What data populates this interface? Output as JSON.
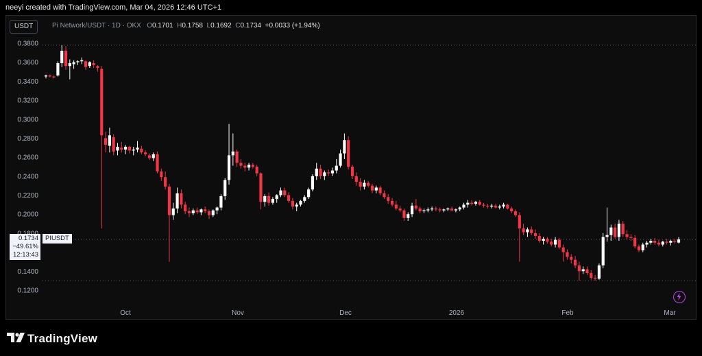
{
  "header": {
    "credit": "neeyi created with TradingView.com, Mar 04, 2026 12:46 UTC+1"
  },
  "toolbar": {
    "currency": "USDT"
  },
  "legend": {
    "symbol": "Pi Network/USDT · 1D · OKX",
    "open_label": "O",
    "open": "0.1701",
    "high_label": "H",
    "high": "0.1758",
    "low_label": "L",
    "low": "0.1692",
    "close_label": "C",
    "close": "0.1734",
    "change": "+0.0033 (+1.94%)"
  },
  "price_label": {
    "value": "0.1734",
    "change": "−49.61%",
    "countdown": "12:13:43",
    "symbol": "PIUSDT"
  },
  "footer": {
    "brand": "TradingView"
  },
  "colors": {
    "up": "#ffffff",
    "down": "#f23645",
    "background": "#0d0d0e",
    "grid_dots": "#5d606b",
    "accent": "#b845ea"
  },
  "icons": {
    "bolt": "lightning-bolt-icon",
    "logo": "tradingview-logo-icon"
  },
  "chart_data": {
    "type": "candlestick",
    "title": "Pi Network/USDT · 1D · OKX",
    "ylim": [
      0.12,
      0.38
    ],
    "y_ticks": [
      "0.3800",
      "0.3600",
      "0.3400",
      "0.3200",
      "0.3000",
      "0.2800",
      "0.2600",
      "0.2400",
      "0.2200",
      "0.2000",
      "0.1800",
      "0.1600",
      "0.1400",
      "0.1200"
    ],
    "x_ticks": [
      "Oct",
      "Nov",
      "Dec",
      "2026",
      "Feb",
      "Mar"
    ],
    "grid": false,
    "dotted_lines": [
      0.378,
      0.1734,
      0.13
    ],
    "candles": [
      [
        0.345,
        0.347,
        0.343,
        0.346
      ],
      [
        0.346,
        0.347,
        0.344,
        0.345
      ],
      [
        0.345,
        0.346,
        0.343,
        0.344
      ],
      [
        0.346,
        0.361,
        0.345,
        0.359
      ],
      [
        0.359,
        0.378,
        0.355,
        0.372
      ],
      [
        0.372,
        0.377,
        0.352,
        0.356
      ],
      [
        0.356,
        0.363,
        0.342,
        0.359
      ],
      [
        0.358,
        0.362,
        0.353,
        0.36
      ],
      [
        0.36,
        0.362,
        0.357,
        0.361
      ],
      [
        0.361,
        0.365,
        0.358,
        0.362
      ],
      [
        0.361,
        0.362,
        0.352,
        0.355
      ],
      [
        0.356,
        0.361,
        0.354,
        0.36
      ],
      [
        0.359,
        0.362,
        0.354,
        0.357
      ],
      [
        0.356,
        0.357,
        0.35,
        0.354
      ],
      [
        0.353,
        0.356,
        0.185,
        0.283
      ],
      [
        0.28,
        0.287,
        0.265,
        0.273
      ],
      [
        0.272,
        0.291,
        0.265,
        0.283
      ],
      [
        0.281,
        0.284,
        0.262,
        0.266
      ],
      [
        0.267,
        0.275,
        0.262,
        0.271
      ],
      [
        0.27,
        0.276,
        0.265,
        0.268
      ],
      [
        0.268,
        0.273,
        0.263,
        0.271
      ],
      [
        0.271,
        0.272,
        0.264,
        0.267
      ],
      [
        0.267,
        0.271,
        0.262,
        0.268
      ],
      [
        0.268,
        0.277,
        0.265,
        0.27
      ],
      [
        0.269,
        0.272,
        0.263,
        0.265
      ],
      [
        0.265,
        0.267,
        0.261,
        0.263
      ],
      [
        0.262,
        0.264,
        0.257,
        0.259
      ],
      [
        0.259,
        0.265,
        0.256,
        0.263
      ],
      [
        0.263,
        0.266,
        0.243,
        0.245
      ],
      [
        0.245,
        0.248,
        0.235,
        0.239
      ],
      [
        0.239,
        0.245,
        0.226,
        0.229
      ],
      [
        0.229,
        0.232,
        0.15,
        0.199
      ],
      [
        0.199,
        0.212,
        0.194,
        0.206
      ],
      [
        0.206,
        0.228,
        0.201,
        0.222
      ],
      [
        0.222,
        0.226,
        0.206,
        0.21
      ],
      [
        0.21,
        0.213,
        0.2,
        0.203
      ],
      [
        0.203,
        0.207,
        0.197,
        0.201
      ],
      [
        0.201,
        0.206,
        0.199,
        0.204
      ],
      [
        0.204,
        0.207,
        0.2,
        0.202
      ],
      [
        0.202,
        0.206,
        0.199,
        0.205
      ],
      [
        0.205,
        0.208,
        0.201,
        0.203
      ],
      [
        0.203,
        0.205,
        0.195,
        0.199
      ],
      [
        0.199,
        0.205,
        0.197,
        0.204
      ],
      [
        0.204,
        0.208,
        0.2,
        0.207
      ],
      [
        0.207,
        0.221,
        0.204,
        0.219
      ],
      [
        0.219,
        0.238,
        0.215,
        0.236
      ],
      [
        0.236,
        0.295,
        0.231,
        0.262
      ],
      [
        0.262,
        0.285,
        0.251,
        0.266
      ],
      [
        0.266,
        0.268,
        0.25,
        0.254
      ],
      [
        0.254,
        0.258,
        0.248,
        0.251
      ],
      [
        0.251,
        0.254,
        0.245,
        0.249
      ],
      [
        0.249,
        0.254,
        0.246,
        0.252
      ],
      [
        0.252,
        0.254,
        0.248,
        0.25
      ],
      [
        0.25,
        0.252,
        0.24,
        0.243
      ],
      [
        0.243,
        0.244,
        0.205,
        0.213
      ],
      [
        0.213,
        0.221,
        0.208,
        0.219
      ],
      [
        0.219,
        0.223,
        0.209,
        0.212
      ],
      [
        0.212,
        0.218,
        0.21,
        0.216
      ],
      [
        0.216,
        0.221,
        0.212,
        0.22
      ],
      [
        0.22,
        0.228,
        0.218,
        0.225
      ],
      [
        0.225,
        0.228,
        0.218,
        0.22
      ],
      [
        0.22,
        0.223,
        0.212,
        0.214
      ],
      [
        0.214,
        0.217,
        0.205,
        0.208
      ],
      [
        0.208,
        0.212,
        0.203,
        0.21
      ],
      [
        0.21,
        0.215,
        0.208,
        0.214
      ],
      [
        0.214,
        0.22,
        0.212,
        0.218
      ],
      [
        0.218,
        0.228,
        0.216,
        0.226
      ],
      [
        0.226,
        0.242,
        0.224,
        0.24
      ],
      [
        0.24,
        0.254,
        0.236,
        0.248
      ],
      [
        0.248,
        0.252,
        0.237,
        0.24
      ],
      [
        0.24,
        0.246,
        0.236,
        0.244
      ],
      [
        0.244,
        0.247,
        0.24,
        0.243
      ],
      [
        0.243,
        0.249,
        0.24,
        0.246
      ],
      [
        0.246,
        0.258,
        0.243,
        0.251
      ],
      [
        0.251,
        0.268,
        0.249,
        0.264
      ],
      [
        0.264,
        0.285,
        0.258,
        0.278
      ],
      [
        0.278,
        0.282,
        0.247,
        0.25
      ],
      [
        0.25,
        0.252,
        0.237,
        0.24
      ],
      [
        0.24,
        0.244,
        0.23,
        0.234
      ],
      [
        0.234,
        0.238,
        0.225,
        0.229
      ],
      [
        0.229,
        0.236,
        0.226,
        0.233
      ],
      [
        0.233,
        0.235,
        0.228,
        0.23
      ],
      [
        0.23,
        0.232,
        0.222,
        0.225
      ],
      [
        0.225,
        0.23,
        0.222,
        0.228
      ],
      [
        0.228,
        0.23,
        0.22,
        0.222
      ],
      [
        0.222,
        0.225,
        0.216,
        0.218
      ],
      [
        0.218,
        0.221,
        0.211,
        0.214
      ],
      [
        0.214,
        0.217,
        0.208,
        0.21
      ],
      [
        0.21,
        0.214,
        0.204,
        0.206
      ],
      [
        0.206,
        0.209,
        0.202,
        0.204
      ],
      [
        0.204,
        0.206,
        0.193,
        0.196
      ],
      [
        0.196,
        0.202,
        0.193,
        0.2
      ],
      [
        0.2,
        0.212,
        0.197,
        0.209
      ],
      [
        0.209,
        0.216,
        0.204,
        0.206
      ],
      [
        0.206,
        0.208,
        0.201,
        0.203
      ],
      [
        0.203,
        0.206,
        0.201,
        0.204
      ],
      [
        0.204,
        0.207,
        0.202,
        0.205
      ],
      [
        0.205,
        0.208,
        0.203,
        0.206
      ],
      [
        0.206,
        0.208,
        0.203,
        0.205
      ],
      [
        0.205,
        0.207,
        0.202,
        0.204
      ],
      [
        0.204,
        0.206,
        0.202,
        0.205
      ],
      [
        0.205,
        0.207,
        0.203,
        0.206
      ],
      [
        0.206,
        0.208,
        0.203,
        0.204
      ],
      [
        0.204,
        0.206,
        0.202,
        0.205
      ],
      [
        0.205,
        0.208,
        0.203,
        0.207
      ],
      [
        0.207,
        0.212,
        0.205,
        0.21
      ],
      [
        0.21,
        0.215,
        0.207,
        0.212
      ],
      [
        0.212,
        0.215,
        0.209,
        0.211
      ],
      [
        0.211,
        0.214,
        0.209,
        0.213
      ],
      [
        0.213,
        0.215,
        0.209,
        0.21
      ],
      [
        0.21,
        0.212,
        0.207,
        0.209
      ],
      [
        0.209,
        0.211,
        0.206,
        0.208
      ],
      [
        0.208,
        0.211,
        0.206,
        0.209
      ],
      [
        0.209,
        0.211,
        0.206,
        0.207
      ],
      [
        0.207,
        0.21,
        0.205,
        0.208
      ],
      [
        0.208,
        0.212,
        0.206,
        0.21
      ],
      [
        0.21,
        0.211,
        0.205,
        0.206
      ],
      [
        0.206,
        0.208,
        0.201,
        0.203
      ],
      [
        0.203,
        0.205,
        0.197,
        0.199
      ],
      [
        0.199,
        0.202,
        0.15,
        0.185
      ],
      [
        0.185,
        0.19,
        0.178,
        0.181
      ],
      [
        0.181,
        0.186,
        0.176,
        0.184
      ],
      [
        0.184,
        0.187,
        0.178,
        0.18
      ],
      [
        0.18,
        0.184,
        0.174,
        0.177
      ],
      [
        0.177,
        0.18,
        0.17,
        0.172
      ],
      [
        0.172,
        0.176,
        0.168,
        0.174
      ],
      [
        0.174,
        0.176,
        0.169,
        0.171
      ],
      [
        0.171,
        0.174,
        0.166,
        0.168
      ],
      [
        0.168,
        0.176,
        0.165,
        0.173
      ],
      [
        0.173,
        0.175,
        0.163,
        0.165
      ],
      [
        0.165,
        0.168,
        0.15,
        0.16
      ],
      [
        0.16,
        0.163,
        0.152,
        0.155
      ],
      [
        0.155,
        0.158,
        0.148,
        0.152
      ],
      [
        0.152,
        0.156,
        0.143,
        0.146
      ],
      [
        0.146,
        0.15,
        0.13,
        0.14
      ],
      [
        0.14,
        0.145,
        0.137,
        0.142
      ],
      [
        0.142,
        0.145,
        0.136,
        0.138
      ],
      [
        0.138,
        0.141,
        0.131,
        0.133
      ],
      [
        0.133,
        0.136,
        0.13,
        0.132
      ],
      [
        0.132,
        0.148,
        0.131,
        0.146
      ],
      [
        0.146,
        0.18,
        0.143,
        0.176
      ],
      [
        0.176,
        0.207,
        0.171,
        0.178
      ],
      [
        0.178,
        0.189,
        0.172,
        0.186
      ],
      [
        0.186,
        0.19,
        0.174,
        0.176
      ],
      [
        0.176,
        0.194,
        0.172,
        0.19
      ],
      [
        0.19,
        0.193,
        0.176,
        0.179
      ],
      [
        0.179,
        0.183,
        0.173,
        0.176
      ],
      [
        0.176,
        0.179,
        0.172,
        0.175
      ],
      [
        0.175,
        0.178,
        0.164,
        0.166
      ],
      [
        0.166,
        0.168,
        0.16,
        0.162
      ],
      [
        0.162,
        0.17,
        0.16,
        0.168
      ],
      [
        0.168,
        0.172,
        0.165,
        0.17
      ],
      [
        0.17,
        0.174,
        0.168,
        0.172
      ],
      [
        0.172,
        0.175,
        0.168,
        0.17
      ],
      [
        0.17,
        0.173,
        0.166,
        0.168
      ],
      [
        0.168,
        0.172,
        0.166,
        0.171
      ],
      [
        0.171,
        0.174,
        0.168,
        0.17
      ],
      [
        0.17,
        0.173,
        0.167,
        0.172
      ],
      [
        0.172,
        0.174,
        0.169,
        0.171
      ],
      [
        0.1701,
        0.1758,
        0.1692,
        0.1734
      ]
    ]
  }
}
